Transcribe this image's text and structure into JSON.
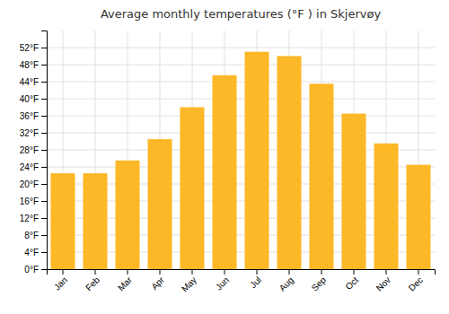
{
  "chart_data": {
    "type": "bar",
    "title": "Average monthly temperatures (°F ) in Skjervøy",
    "categories": [
      "Jan",
      "Feb",
      "Mar",
      "Apr",
      "May",
      "Jun",
      "Jul",
      "Aug",
      "Sep",
      "Oct",
      "Nov",
      "Dec"
    ],
    "values": [
      22.5,
      22.5,
      25.5,
      30.5,
      38.0,
      45.5,
      51.0,
      50.0,
      43.5,
      36.5,
      29.5,
      24.5
    ],
    "color": "#FDB827",
    "ylim": [
      0,
      56
    ],
    "yticks": [
      {
        "value": 0,
        "label": "0°F"
      },
      {
        "value": 4,
        "label": "4°F"
      },
      {
        "value": 8,
        "label": "8°F"
      },
      {
        "value": 12,
        "label": "12°F"
      },
      {
        "value": 16,
        "label": "16°F"
      },
      {
        "value": 20,
        "label": "20°F"
      },
      {
        "value": 24,
        "label": "24°F"
      },
      {
        "value": 28,
        "label": "28°F"
      },
      {
        "value": 32,
        "label": "32°F"
      },
      {
        "value": 36,
        "label": "36°F"
      },
      {
        "value": 40,
        "label": "40°F"
      },
      {
        "value": 44,
        "label": "44°F"
      },
      {
        "value": 48,
        "label": "48°F"
      },
      {
        "value": 52,
        "label": "52°F"
      }
    ],
    "grid": true
  }
}
